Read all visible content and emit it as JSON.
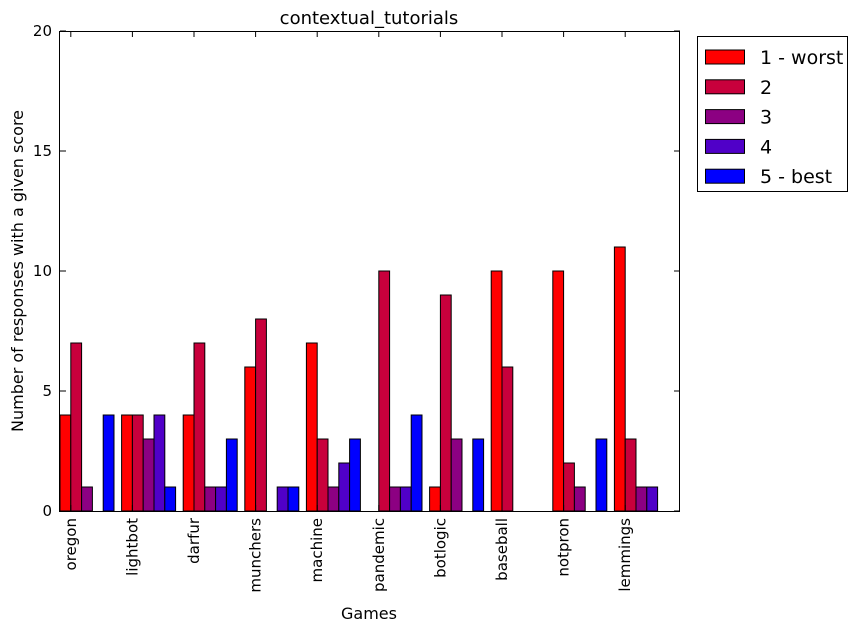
{
  "chart_data": {
    "type": "bar",
    "title": "contextual_tutorials",
    "xlabel": "Games",
    "ylabel": "Number of responses with a given score",
    "ylim": [
      0,
      20
    ],
    "yticks": [
      0,
      5,
      10,
      15,
      20
    ],
    "grid": false,
    "legend_position": "outside-top-right",
    "categories": [
      "oregon",
      "lightbot",
      "darfur",
      "munchers",
      "machine",
      "pandemic",
      "botlogic",
      "baseball",
      "notpron",
      "lemmings"
    ],
    "series": [
      {
        "name": "1 - worst",
        "color": "#ff0000",
        "values": [
          4,
          4,
          4,
          6,
          7,
          0,
          1,
          10,
          10,
          11
        ]
      },
      {
        "name": "2",
        "color": "#c8003c",
        "values": [
          7,
          4,
          7,
          8,
          3,
          10,
          9,
          6,
          2,
          3
        ]
      },
      {
        "name": "3",
        "color": "#8c0082",
        "values": [
          1,
          3,
          1,
          0,
          1,
          1,
          3,
          0,
          1,
          1
        ]
      },
      {
        "name": "4",
        "color": "#5000c8",
        "values": [
          0,
          4,
          1,
          1,
          2,
          1,
          0,
          0,
          0,
          1
        ]
      },
      {
        "name": "5 - best",
        "color": "#0000ff",
        "values": [
          4,
          1,
          3,
          1,
          3,
          4,
          3,
          0,
          3,
          0
        ]
      }
    ]
  }
}
